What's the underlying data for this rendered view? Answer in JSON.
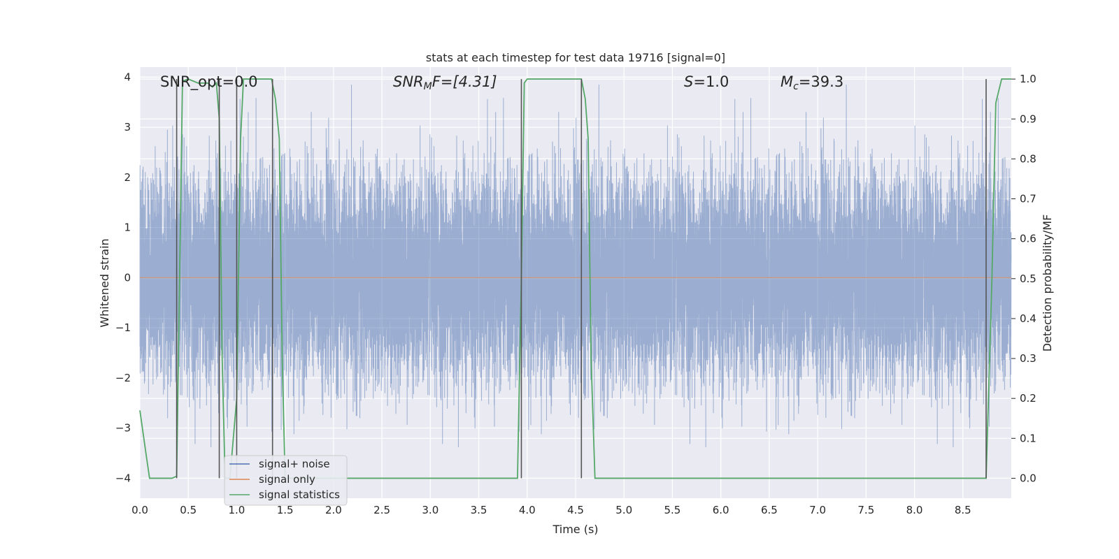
{
  "chart_data": {
    "type": "line",
    "title": "stats at each timestep for test data 19716 [signal=0]",
    "xlabel": "Time (s)",
    "ylabel_left": "Whitened strain",
    "ylabel_right": "Detection probability/MF",
    "xlim": [
      0.0,
      9.0
    ],
    "ylim_left": [
      -4.4,
      4.2
    ],
    "ylim_right": [
      -0.05,
      1.03
    ],
    "x_ticks": [
      "0.0",
      "0.5",
      "1.0",
      "1.5",
      "2.0",
      "2.5",
      "3.0",
      "3.5",
      "4.0",
      "4.5",
      "5.0",
      "5.5",
      "6.0",
      "6.5",
      "7.0",
      "7.5",
      "8.0",
      "8.5"
    ],
    "x_tick_values": [
      0.0,
      0.5,
      1.0,
      1.5,
      2.0,
      2.5,
      3.0,
      3.5,
      4.0,
      4.5,
      5.0,
      5.5,
      6.0,
      6.5,
      7.0,
      7.5,
      8.0,
      8.5
    ],
    "y_left_ticks": [
      "4",
      "3",
      "2",
      "1",
      "0",
      "−1",
      "−2",
      "−3",
      "−4"
    ],
    "y_left_tick_values": [
      4,
      3,
      2,
      1,
      0,
      -1,
      -2,
      -3,
      -4
    ],
    "y_right_ticks": [
      "1.0",
      "0.9",
      "0.8",
      "0.7",
      "0.6",
      "0.5",
      "0.4",
      "0.3",
      "0.2",
      "0.1",
      "0.0"
    ],
    "y_right_tick_values": [
      1.0,
      0.9,
      0.8,
      0.7,
      0.6,
      0.5,
      0.4,
      0.3,
      0.2,
      0.1,
      0.0
    ],
    "grid": true,
    "legend_position": "lower-left",
    "annotations": {
      "snr_opt": "SNR_opt=0.0",
      "snr_mf": "SNR",
      "snr_mf_sub": "M",
      "snr_mf_rest": "F=[4.31]",
      "s_sym": "S",
      "s_rest": "=1.0",
      "mc_sym": "M",
      "mc_sub": "c",
      "mc_rest": "=39.3"
    },
    "series": [
      {
        "name": "signal+ noise",
        "color": "#4c72b0",
        "kind": "noise",
        "sample_rate": 2048,
        "std": 1.0
      },
      {
        "name": "signal only",
        "color": "#dd8452",
        "kind": "constant",
        "value": 0.0
      },
      {
        "name": "signal statistics",
        "color": "#55a868",
        "axis": "right",
        "x": [
          0.0,
          0.07,
          0.1,
          0.2,
          0.3,
          0.33,
          0.38,
          0.41,
          0.44,
          0.5,
          0.6,
          0.7,
          0.75,
          0.79,
          0.82,
          0.85,
          0.88,
          0.93,
          1.0,
          1.04,
          1.07,
          1.1,
          1.2,
          1.3,
          1.36,
          1.4,
          1.44,
          1.47,
          1.5,
          1.6,
          2.0,
          2.5,
          3.0,
          3.5,
          3.9,
          3.94,
          3.97,
          4.0,
          4.05,
          4.2,
          4.4,
          4.56,
          4.6,
          4.63,
          4.66,
          4.7,
          5.0,
          6.0,
          7.0,
          8.0,
          8.74,
          8.8,
          8.84,
          8.9,
          9.0
        ],
        "y": [
          0.17,
          0.05,
          0.0,
          0.0,
          0.0,
          0.0,
          0.005,
          0.5,
          0.995,
          1.0,
          0.99,
          0.99,
          0.98,
          0.99,
          0.9,
          0.3,
          0.0,
          0.0,
          0.2,
          0.85,
          1.0,
          1.0,
          1.0,
          1.0,
          1.0,
          0.95,
          0.85,
          0.3,
          0.0,
          0.0,
          0.0,
          0.0,
          0.0,
          0.0,
          0.0,
          0.5,
          0.99,
          1.0,
          1.0,
          1.0,
          1.0,
          1.0,
          0.95,
          0.85,
          0.3,
          0.0,
          0.0,
          0.0,
          0.0,
          0.0,
          0.0,
          0.5,
          0.94,
          1.0,
          1.0
        ]
      }
    ],
    "vlines": {
      "color": "#555555",
      "x": [
        0.38,
        0.82,
        1.0,
        1.37,
        3.94,
        4.56,
        8.74
      ]
    },
    "legend": [
      "signal+ noise",
      "signal only",
      "signal statistics"
    ]
  }
}
